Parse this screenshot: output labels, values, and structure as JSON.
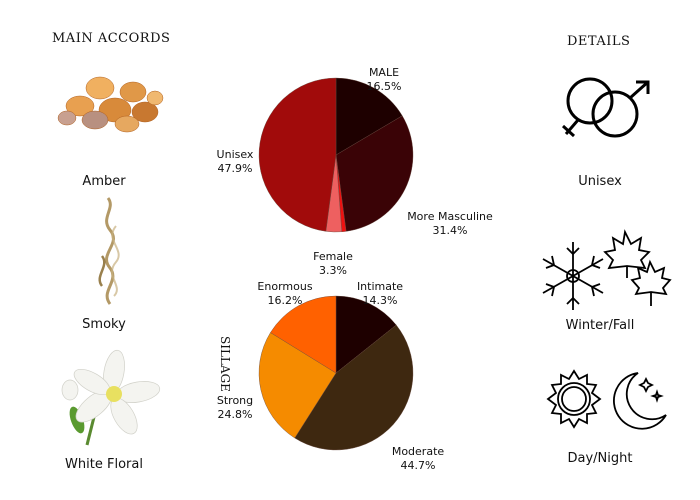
{
  "left": {
    "heading": "MAIN ACCORDS",
    "accords": [
      {
        "label": "Amber",
        "icon": "amber-resin-image"
      },
      {
        "label": "Smoky",
        "icon": "smoke-image"
      },
      {
        "label": "White Floral",
        "icon": "white-flower-image"
      }
    ]
  },
  "right": {
    "heading": "DETAILS",
    "items": [
      {
        "label": "Unisex",
        "icon": "gender-symbols-icon"
      },
      {
        "label": "Winter/Fall",
        "icon": "snowflake-leaves-icon"
      },
      {
        "label": "Day/Night",
        "icon": "sun-moon-icon"
      }
    ]
  },
  "chart_data": [
    {
      "type": "pie",
      "title": "",
      "slices": [
        {
          "label": "MALE",
          "value": 16.5,
          "text": "16.5%",
          "color": "#1e0000"
        },
        {
          "label": "More Masculine",
          "value": 31.4,
          "text": "31.4%",
          "color": "#3a0306"
        },
        {
          "label": "",
          "value": 0.9,
          "text": "",
          "color": "#ee1111"
        },
        {
          "label": "Female",
          "value": 3.3,
          "text": "3.3%",
          "color": "#ee6060"
        },
        {
          "label": "Unisex",
          "value": 47.9,
          "text": "47.9%",
          "color": "#a10b0b"
        }
      ]
    },
    {
      "type": "pie",
      "title": "SILLAGE",
      "slices": [
        {
          "label": "Intimate",
          "value": 14.3,
          "text": "14.3%",
          "color": "#1e0000"
        },
        {
          "label": "Moderate",
          "value": 44.7,
          "text": "44.7%",
          "color": "#3e2810"
        },
        {
          "label": "Strong",
          "value": 24.8,
          "text": "24.8%",
          "color": "#f58b00"
        },
        {
          "label": "Enormous",
          "value": 16.2,
          "text": "16.2%",
          "color": "#ff6100"
        }
      ]
    }
  ]
}
